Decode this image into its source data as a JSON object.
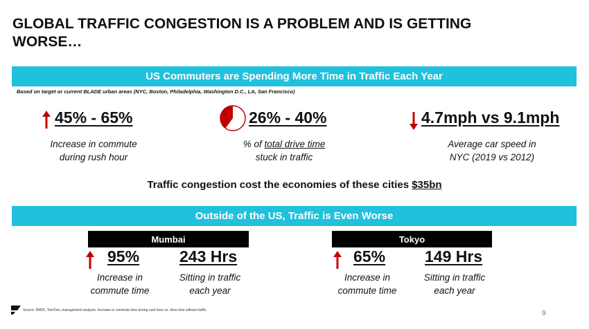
{
  "title": "GLOBAL TRAFFIC CONGESTION IS A PROBLEM AND IS GETTING WORSE…",
  "us_section": {
    "banner": "US Commuters are Spending More Time in Traffic Each Year",
    "note": "Based on target or current BLADE urban areas (NYC, Boston, Philadelphia, Washington D.C., LA, San Francisco)",
    "stats": [
      {
        "value": "45% - 65%",
        "desc_line1": "Increase in commute",
        "desc_line2": "during rush hour",
        "icon": "arrow-up-icon"
      },
      {
        "value": "26% - 40%",
        "desc_prefix": "% of ",
        "desc_underlined": "total drive time",
        "desc_line2": "stuck in traffic",
        "icon": "pie-icon",
        "pie_fraction": 0.4
      },
      {
        "value": "4.7mph vs 9.1mph",
        "desc_line1": "Average car speed in",
        "desc_line2": "NYC (2019 vs 2012)",
        "icon": "arrow-down-icon"
      }
    ],
    "cost_prefix": "Traffic congestion cost the economies of these cities ",
    "cost_value": "$35bn"
  },
  "intl_section": {
    "banner": "Outside of the US, Traffic is Even Worse",
    "cities": [
      {
        "name": "Mumbai",
        "pct": "95%",
        "pct_line1": "Increase in",
        "pct_line2": "commute time",
        "hrs": "243 Hrs",
        "hrs_line1": "Sitting in traffic",
        "hrs_line2": "each year"
      },
      {
        "name": "Tokyo",
        "pct": "65%",
        "pct_line1": "Increase in",
        "pct_line2": "commute time",
        "hrs": "149 Hrs",
        "hrs_line1": "Sitting in traffic",
        "hrs_line2": "each year"
      }
    ]
  },
  "footer": {
    "source": "Source: INRIX, TomTom, management analysis.  Increase in commute time during rush hour vs. drive time without traffic.",
    "page": "9"
  },
  "colors": {
    "accent": "#1fc1dc",
    "red": "#c00000",
    "black": "#000000"
  }
}
